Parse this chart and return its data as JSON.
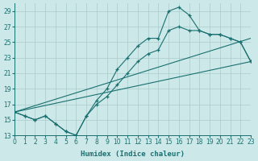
{
  "xlabel": "Humidex (Indice chaleur)",
  "xlim": [
    0,
    23
  ],
  "ylim": [
    13,
    30
  ],
  "yticks": [
    13,
    15,
    17,
    19,
    21,
    23,
    25,
    27,
    29
  ],
  "xticks": [
    0,
    1,
    2,
    3,
    4,
    5,
    6,
    7,
    8,
    9,
    10,
    11,
    12,
    13,
    14,
    15,
    16,
    17,
    18,
    19,
    20,
    21,
    22,
    23
  ],
  "bg_color": "#cce8e8",
  "line_color": "#1a7070",
  "grid_color": "#b8d8d8",
  "curve1_x": [
    0,
    1,
    2,
    3,
    4,
    5,
    6,
    7,
    8,
    9,
    10,
    11,
    12,
    13,
    14,
    15,
    16,
    17,
    18,
    19,
    20,
    21,
    22,
    23
  ],
  "curve1_y": [
    16.0,
    15.5,
    15.0,
    15.5,
    14.5,
    13.5,
    13.0,
    15.5,
    17.5,
    19.0,
    21.5,
    23.0,
    24.5,
    25.5,
    25.5,
    29.0,
    29.5,
    28.5,
    26.5,
    26.0,
    26.0,
    25.5,
    25.0,
    22.5
  ],
  "curve2_x": [
    0,
    1,
    2,
    3,
    4,
    5,
    6,
    7,
    8,
    9,
    10,
    11,
    12,
    13,
    14,
    15,
    16,
    17,
    18,
    19,
    20,
    21,
    22,
    23
  ],
  "curve2_y": [
    16.0,
    15.5,
    15.0,
    15.5,
    14.5,
    13.5,
    13.0,
    15.5,
    17.0,
    18.0,
    19.5,
    21.0,
    22.5,
    23.5,
    24.0,
    26.5,
    27.0,
    26.5,
    26.5,
    26.0,
    26.0,
    25.5,
    25.0,
    22.5
  ],
  "line3_x": [
    0,
    23
  ],
  "line3_y": [
    16.0,
    22.5
  ],
  "line4_x": [
    0,
    23
  ],
  "line4_y": [
    16.0,
    25.5
  ]
}
